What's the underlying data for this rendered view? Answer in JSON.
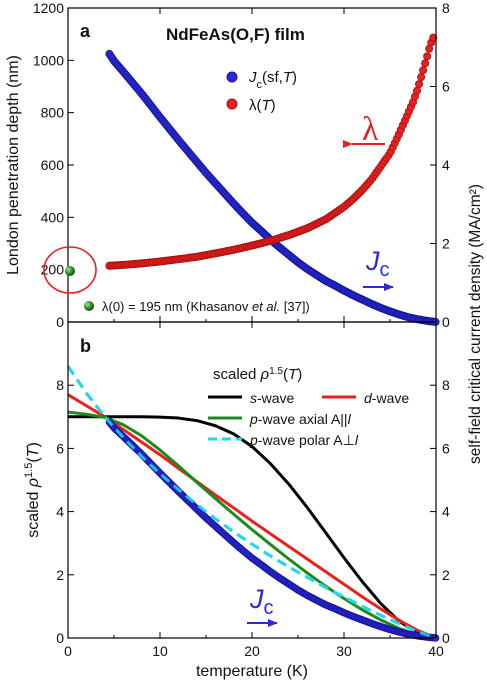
{
  "colors": {
    "jc": "#2b2bd6",
    "lambda": "#e8201e",
    "s_wave": "#000000",
    "d_wave": "#e8201e",
    "p_axial": "#1e8a1e",
    "p_polar": "#22d8e8",
    "lambda0_point": "#2e8b2e"
  },
  "chart_data": [
    {
      "panel": "a",
      "type": "scatter",
      "title": "NdFeAs(O,F) film",
      "xlabel": "",
      "ylabel": "London penetration depth (nm)",
      "ylabel_right": "self-field critical current density (MA/cm²)",
      "xlim": [
        0,
        40
      ],
      "ylim": [
        0,
        1200
      ],
      "ylim_right": [
        0,
        8
      ],
      "x_ticks": [
        "0",
        "10",
        "20",
        "30",
        "40"
      ],
      "y_ticks": [
        "0",
        "200",
        "400",
        "600",
        "800",
        "1000",
        "1200"
      ],
      "y_ticks_right": [
        "0",
        "2",
        "4",
        "6",
        "8"
      ],
      "legend": [
        {
          "sym": "J",
          "sub": "c",
          "rest": "(sf,",
          "it": "T",
          "close": ")"
        },
        {
          "sym": "λ(",
          "sub": "",
          "rest": "",
          "it": "T",
          "close": ")"
        }
      ],
      "arrow_labels": {
        "lambda": "λ",
        "jc_main": "J",
        "jc_sub": "c"
      },
      "lambda0_note": {
        "pre": "λ(0) = 195 nm (Khasanov ",
        "italic": "et al.",
        "post": " [37])"
      },
      "lambda0_point": {
        "x": 0,
        "y": 195
      },
      "series": [
        {
          "name": "Jc(sf,T)",
          "axis": "right",
          "x": [
            4.5,
            5,
            6,
            7,
            8,
            9,
            10,
            11,
            12,
            13,
            14,
            15,
            16,
            17,
            18,
            19,
            20,
            21,
            22,
            23,
            24,
            25,
            26,
            27,
            28,
            29,
            30,
            31,
            32,
            33,
            34,
            35,
            36,
            37,
            38,
            39,
            40
          ],
          "y": [
            6.83,
            6.65,
            6.38,
            6.1,
            5.82,
            5.52,
            5.22,
            4.93,
            4.64,
            4.36,
            4.08,
            3.8,
            3.54,
            3.28,
            3.02,
            2.77,
            2.53,
            2.32,
            2.1,
            1.9,
            1.71,
            1.52,
            1.35,
            1.2,
            1.05,
            0.93,
            0.8,
            0.68,
            0.57,
            0.46,
            0.36,
            0.27,
            0.19,
            0.12,
            0.07,
            0.03,
            0.0
          ]
        },
        {
          "name": "λ(T)",
          "axis": "left",
          "x": [
            4.5,
            6,
            8,
            10,
            12,
            14,
            16,
            18,
            20,
            22,
            24,
            26,
            28,
            30,
            31,
            32,
            33,
            34,
            35,
            36,
            36.5,
            37,
            37.5,
            38,
            38.5,
            39,
            39.3,
            39.6,
            39.9
          ],
          "y": [
            215,
            218,
            224,
            231,
            240,
            249,
            262,
            276,
            292,
            310,
            332,
            358,
            392,
            440,
            470,
            505,
            545,
            595,
            645,
            720,
            760,
            800,
            840,
            890,
            950,
            1010,
            1050,
            1080,
            1100
          ]
        }
      ]
    },
    {
      "panel": "b",
      "type": "line",
      "title": "",
      "xlabel": "temperature (K)",
      "ylabel": "scaled ρ^1.5(T)",
      "xlim": [
        0,
        40
      ],
      "ylim": [
        0,
        10
      ],
      "ylim_right": [
        0,
        10
      ],
      "x_ticks": [
        "0",
        "10",
        "20",
        "30",
        "40"
      ],
      "y_ticks": [
        "0",
        "2",
        "4",
        "6",
        "8"
      ],
      "y_ticks_right": [
        "0",
        "2",
        "4",
        "6",
        "8"
      ],
      "legend_title": {
        "pre": "scaled ",
        "rho": "ρ",
        "sup": "1.5",
        "paren": "(",
        "it": "T",
        "close": ")"
      },
      "legend": [
        {
          "it": "s",
          "rest": "-wave"
        },
        {
          "it": "d",
          "rest": "-wave"
        },
        {
          "it": "p",
          "rest": "-wave axial A||",
          "it2": "l"
        },
        {
          "it": "p",
          "rest": "-wave polar A⊥",
          "it2": "l"
        }
      ],
      "arrow_labels": {
        "jc_main": "J",
        "jc_sub": "c"
      },
      "series": [
        {
          "name": "s-wave",
          "x": [
            0,
            2,
            4,
            6,
            8,
            10,
            12,
            14,
            16,
            18,
            20,
            22,
            24,
            26,
            28,
            30,
            32,
            34,
            36,
            38,
            40
          ],
          "y": [
            7.0,
            7.0,
            7.0,
            7.0,
            7.0,
            6.99,
            6.96,
            6.88,
            6.72,
            6.46,
            6.06,
            5.52,
            4.87,
            4.13,
            3.34,
            2.54,
            1.78,
            1.09,
            0.53,
            0.16,
            0.0
          ]
        },
        {
          "name": "d-wave",
          "x": [
            0,
            2,
            4,
            6,
            8,
            10,
            12,
            14,
            16,
            18,
            20,
            22,
            24,
            26,
            28,
            30,
            32,
            34,
            36,
            38,
            40
          ],
          "y": [
            7.7,
            7.35,
            7.0,
            6.6,
            6.2,
            5.8,
            5.37,
            4.95,
            4.53,
            4.12,
            3.7,
            3.3,
            2.9,
            2.5,
            2.1,
            1.7,
            1.3,
            0.92,
            0.56,
            0.24,
            0.0
          ]
        },
        {
          "name": "p-wave axial A||l",
          "x": [
            0,
            2,
            4,
            6,
            8,
            10,
            12,
            14,
            16,
            18,
            20,
            22,
            24,
            26,
            28,
            30,
            32,
            34,
            36,
            38,
            40
          ],
          "y": [
            7.15,
            7.08,
            6.98,
            6.75,
            6.4,
            5.95,
            5.45,
            4.93,
            4.42,
            3.92,
            3.43,
            2.96,
            2.5,
            2.06,
            1.64,
            1.25,
            0.89,
            0.57,
            0.3,
            0.1,
            0.0
          ]
        },
        {
          "name": "p-wave polar A⊥l",
          "x": [
            0,
            2,
            4,
            6,
            8,
            10,
            12,
            14,
            16,
            18,
            20,
            22,
            24,
            26,
            28,
            30,
            32,
            34,
            36,
            38,
            40
          ],
          "y": [
            8.6,
            7.75,
            7.0,
            6.35,
            5.75,
            5.2,
            4.7,
            4.22,
            3.78,
            3.36,
            2.97,
            2.6,
            2.25,
            1.92,
            1.6,
            1.3,
            1.0,
            0.72,
            0.45,
            0.2,
            0.0
          ]
        },
        {
          "name": "Jc(sf,T)",
          "scatter": true,
          "x": [
            4.5,
            5,
            6,
            7,
            8,
            9,
            10,
            11,
            12,
            13,
            14,
            15,
            16,
            17,
            18,
            19,
            20,
            21,
            22,
            23,
            24,
            25,
            26,
            27,
            28,
            29,
            30,
            31,
            32,
            33,
            34,
            35,
            36,
            37,
            38,
            39,
            40
          ],
          "y": [
            6.83,
            6.65,
            6.38,
            6.1,
            5.82,
            5.52,
            5.22,
            4.93,
            4.64,
            4.36,
            4.08,
            3.8,
            3.54,
            3.28,
            3.02,
            2.77,
            2.53,
            2.32,
            2.1,
            1.9,
            1.71,
            1.52,
            1.35,
            1.2,
            1.05,
            0.93,
            0.8,
            0.68,
            0.57,
            0.46,
            0.36,
            0.27,
            0.19,
            0.12,
            0.07,
            0.03,
            0.0
          ]
        }
      ]
    }
  ]
}
